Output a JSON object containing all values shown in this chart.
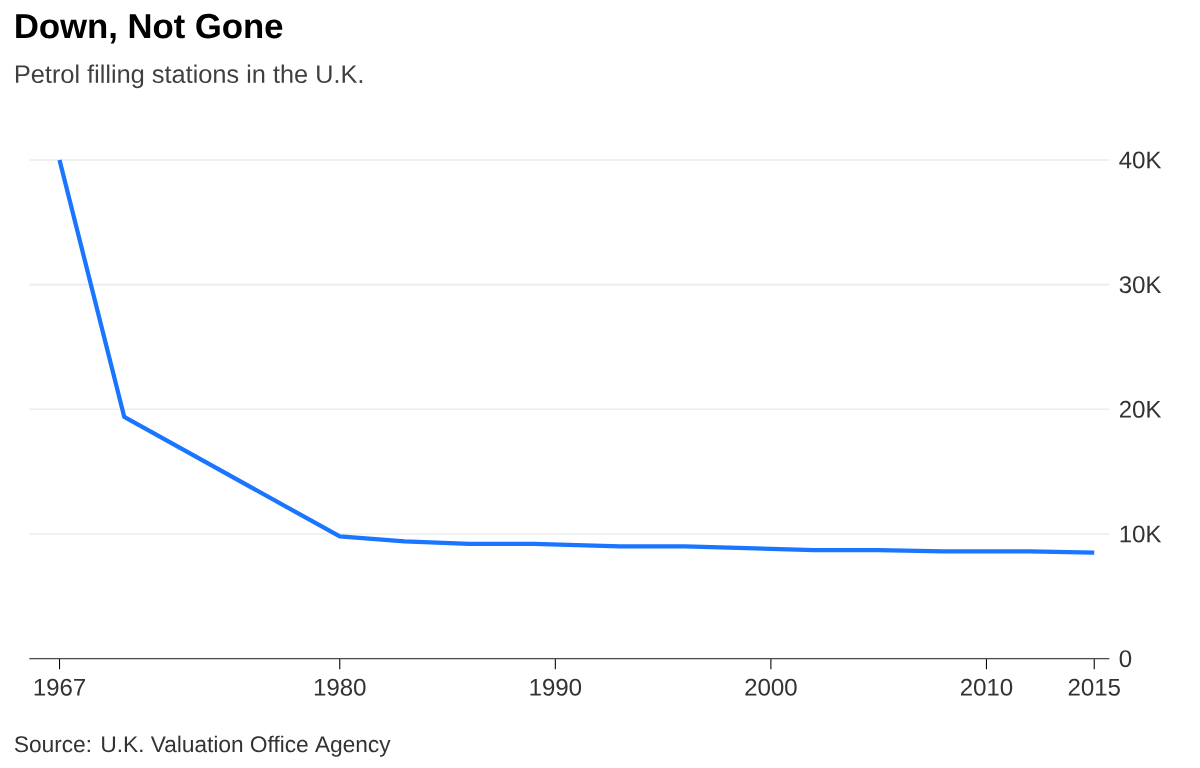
{
  "chart_data": {
    "type": "line",
    "title": "Down, Not Gone",
    "subtitle": "Petrol filling stations in the U.K.",
    "annotations": [
      "Source: U.K. Valuation Office Agency"
    ],
    "x": [
      1967,
      1970,
      1980,
      1983,
      1986,
      1989,
      1993,
      1996,
      2002,
      2005,
      2008,
      2012,
      2015
    ],
    "series": [
      {
        "color": "#1a75ff",
        "values": [
          40000,
          19400,
          9800,
          9400,
          9200,
          9200,
          9000,
          9000,
          8700,
          8700,
          8600,
          8600,
          8500
        ]
      }
    ],
    "xlim": [
      1965.6,
      2015.7
    ],
    "ylim": [
      0,
      40000
    ],
    "xticks": [
      1967,
      1980,
      1990,
      2000,
      2010,
      2015
    ],
    "yticks": [
      0,
      {
        "value": 10000,
        "label": "10K"
      },
      {
        "value": 20000,
        "label": "20K"
      },
      {
        "value": 30000,
        "label": "30K"
      },
      {
        "value": 40000,
        "label": "40K"
      }
    ],
    "grid": "y",
    "marker": "none",
    "line_style": "solid"
  }
}
